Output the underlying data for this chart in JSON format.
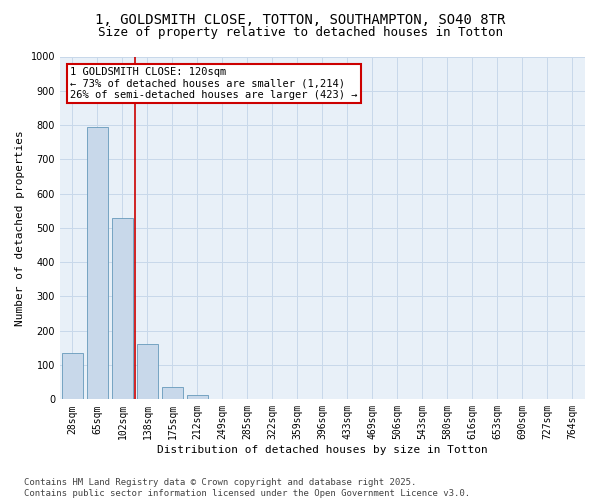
{
  "title_line1": "1, GOLDSMITH CLOSE, TOTTON, SOUTHAMPTON, SO40 8TR",
  "title_line2": "Size of property relative to detached houses in Totton",
  "xlabel": "Distribution of detached houses by size in Totton",
  "ylabel": "Number of detached properties",
  "categories": [
    "28sqm",
    "65sqm",
    "102sqm",
    "138sqm",
    "175sqm",
    "212sqm",
    "249sqm",
    "285sqm",
    "322sqm",
    "359sqm",
    "396sqm",
    "433sqm",
    "469sqm",
    "506sqm",
    "543sqm",
    "580sqm",
    "616sqm",
    "653sqm",
    "690sqm",
    "727sqm",
    "764sqm"
  ],
  "values": [
    135,
    795,
    530,
    160,
    37,
    12,
    0,
    0,
    0,
    0,
    0,
    0,
    0,
    0,
    0,
    0,
    0,
    0,
    0,
    0,
    0
  ],
  "bar_color": "#c8d8ea",
  "bar_edge_color": "#6699bb",
  "redline_x": 2.5,
  "annotation_line1": "1 GOLDSMITH CLOSE: 120sqm",
  "annotation_line2": "← 73% of detached houses are smaller (1,214)",
  "annotation_line3": "26% of semi-detached houses are larger (423) →",
  "annotation_box_color": "#ffffff",
  "annotation_box_edge_color": "#cc0000",
  "redline_color": "#cc0000",
  "ylim": [
    0,
    1000
  ],
  "yticks": [
    0,
    100,
    200,
    300,
    400,
    500,
    600,
    700,
    800,
    900,
    1000
  ],
  "grid_color": "#c8d8ea",
  "bg_color": "#e8f0f8",
  "footer_text": "Contains HM Land Registry data © Crown copyright and database right 2025.\nContains public sector information licensed under the Open Government Licence v3.0.",
  "title_fontsize": 10,
  "subtitle_fontsize": 9,
  "axis_label_fontsize": 8,
  "tick_fontsize": 7,
  "annotation_fontsize": 7.5,
  "footer_fontsize": 6.5
}
